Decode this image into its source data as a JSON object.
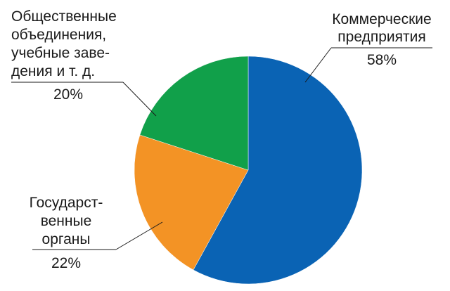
{
  "chart_data": {
    "type": "pie",
    "title": "",
    "start_angle_deg": 0,
    "direction": "clockwise",
    "slices": [
      {
        "label_lines": [
          "Коммерческие",
          "предприятия"
        ],
        "value": 58,
        "value_label": "58%",
        "color": "#0a63b4"
      },
      {
        "label_lines": [
          "Государст-",
          "венные",
          "органы"
        ],
        "value": 22,
        "value_label": "22%",
        "color": "#f39325"
      },
      {
        "label_lines": [
          "Общественные",
          "объединения,",
          "учебные заве-",
          "дения и т. д."
        ],
        "value": 20,
        "value_label": "20%",
        "color": "#11a04a"
      }
    ]
  }
}
